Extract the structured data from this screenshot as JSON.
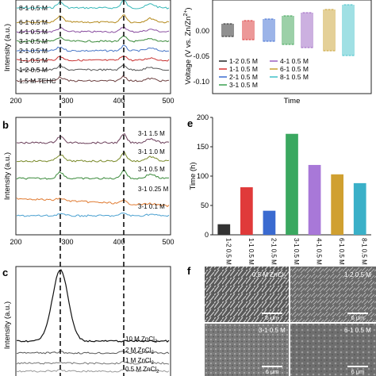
{
  "panels": {
    "a": {
      "letter": "a",
      "xlabel": "",
      "ylabel": "Intensity (a.u.)",
      "xticks": [
        "200",
        "300",
        "400",
        "500"
      ],
      "legend": [
        "8-1 0.5 M",
        "6-1 0.5 M",
        "4-1 0.5 M",
        "3-1 0.5 M",
        "2-1 0.5 M",
        "1-1 0.5 M",
        "1-2 0.5 M",
        "1.5 M TEHC"
      ],
      "colors": [
        "#38b8b8",
        "#b58b1f",
        "#8a4fa0",
        "#3a8a3a",
        "#4a78c8",
        "#c83232",
        "#555555",
        "#6b3f3f"
      ]
    },
    "b": {
      "letter": "b",
      "ylabel": "Intensity (a.u.)",
      "xticks": [
        "200",
        "300",
        "400",
        "500"
      ],
      "labels": [
        "3-1 1.5 M",
        "3-1 1.0 M",
        "3-1 0.5 M",
        "3-1 0.25 M",
        "3-1 0.1 M"
      ],
      "colors": [
        "#6b3f5a",
        "#7a8a2a",
        "#3a8a3a",
        "#e07a30",
        "#4aa0d0"
      ]
    },
    "c": {
      "letter": "c",
      "ylabel": "Intensity (a.u.)",
      "labels": [
        "10 M ZnCl",
        "2 M ZnCl",
        "1 M ZnCl",
        "0.5 M ZnCl"
      ],
      "subscript": "2"
    },
    "d": {
      "ylabel": "Voltage (V vs. Zn/Zn",
      "ylabel_sup": "2+",
      "ylabel_close": ")",
      "xlabel": "Time",
      "yticks": [
        "0.00",
        "-0.05",
        "-0.10"
      ],
      "legend": [
        "1-2 0.5 M",
        "1-1 0.5 M",
        "2-1 0.5 M",
        "3-1 0.5 M",
        "4-1 0.5 M",
        "6-1 0.5 M",
        "8-1 0.5 M"
      ],
      "colors": [
        "#222222",
        "#d83030",
        "#3a6ad0",
        "#3aa050",
        "#9a60c0",
        "#c8a030",
        "#40c0c8"
      ]
    },
    "e": {
      "letter": "e",
      "ylabel": "Time (h)",
      "yticks": [
        "0",
        "50",
        "100",
        "150",
        "200"
      ]
    },
    "f": {
      "letter": "f",
      "images": [
        "0.5 M ZnCl",
        "1-2 0.5 M",
        "3-1 0.5 M",
        "6-1 0.5 M"
      ],
      "subscript": "2",
      "scalebar": "6 μm"
    }
  },
  "chart_data": [
    {
      "type": "bar",
      "panel": "e",
      "categories": [
        "1-2 0.5 M",
        "1-1 0.5 M",
        "2-1 0.5 M",
        "3-1 0.5 M",
        "4-1 0.5 M",
        "6-1 0.5 M",
        "8-1 0.5 M"
      ],
      "values": [
        18,
        81,
        41,
        172,
        119,
        103,
        88
      ],
      "colors": [
        "#333333",
        "#e03a3a",
        "#3a6ad0",
        "#3aa860",
        "#a878d8",
        "#d0a030",
        "#3ab0c8"
      ],
      "ylabel": "Time (h)",
      "ylim": [
        0,
        200
      ]
    }
  ]
}
